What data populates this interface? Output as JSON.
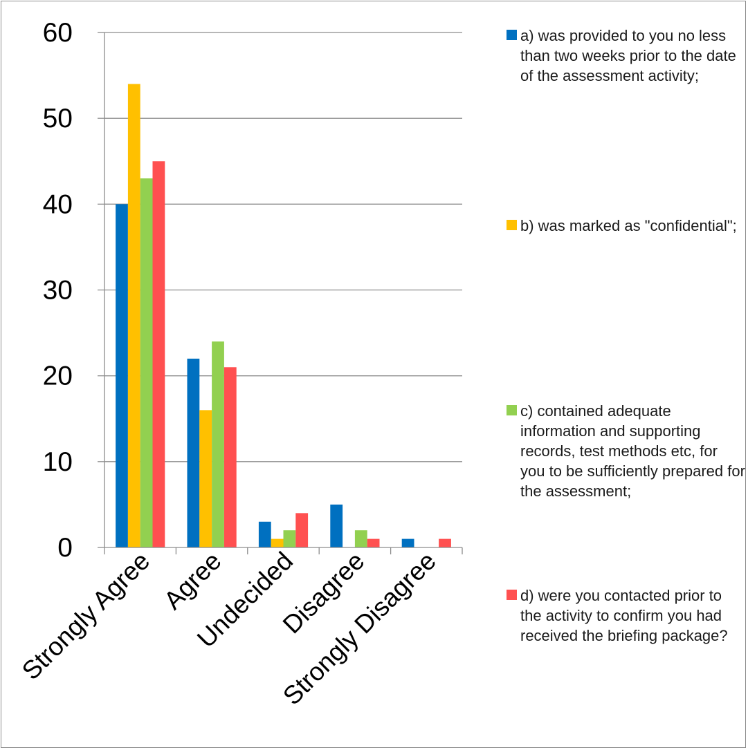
{
  "chart_data": {
    "type": "bar",
    "title": "",
    "xlabel": "",
    "ylabel": "",
    "ylim": [
      0,
      60
    ],
    "yticks": [
      0,
      10,
      20,
      30,
      40,
      50,
      60
    ],
    "grid": true,
    "legend_position": "right",
    "categories": [
      "Strongly Agree",
      "Agree",
      "Undecided",
      "Disagree",
      "Strongly Disagree"
    ],
    "series": [
      {
        "name": "a) was provided to you no less than two weeks prior to the date of the assessment activity;",
        "color": "#0070C0",
        "values": [
          40,
          22,
          3,
          5,
          1
        ]
      },
      {
        "name": "b) was marked as \"confidential\";",
        "color": "#FFC000",
        "values": [
          54,
          16,
          1,
          0,
          0
        ]
      },
      {
        "name": "c) contained adequate information and supporting records, test methods etc, for you to be sufficiently prepared for the assessment;",
        "color": "#92D050",
        "values": [
          43,
          24,
          2,
          2,
          0
        ]
      },
      {
        "name": "d) were you contacted prior to the activity to confirm you had received the briefing package?",
        "color": "#FF5050",
        "values": [
          45,
          21,
          4,
          1,
          1
        ]
      }
    ]
  }
}
